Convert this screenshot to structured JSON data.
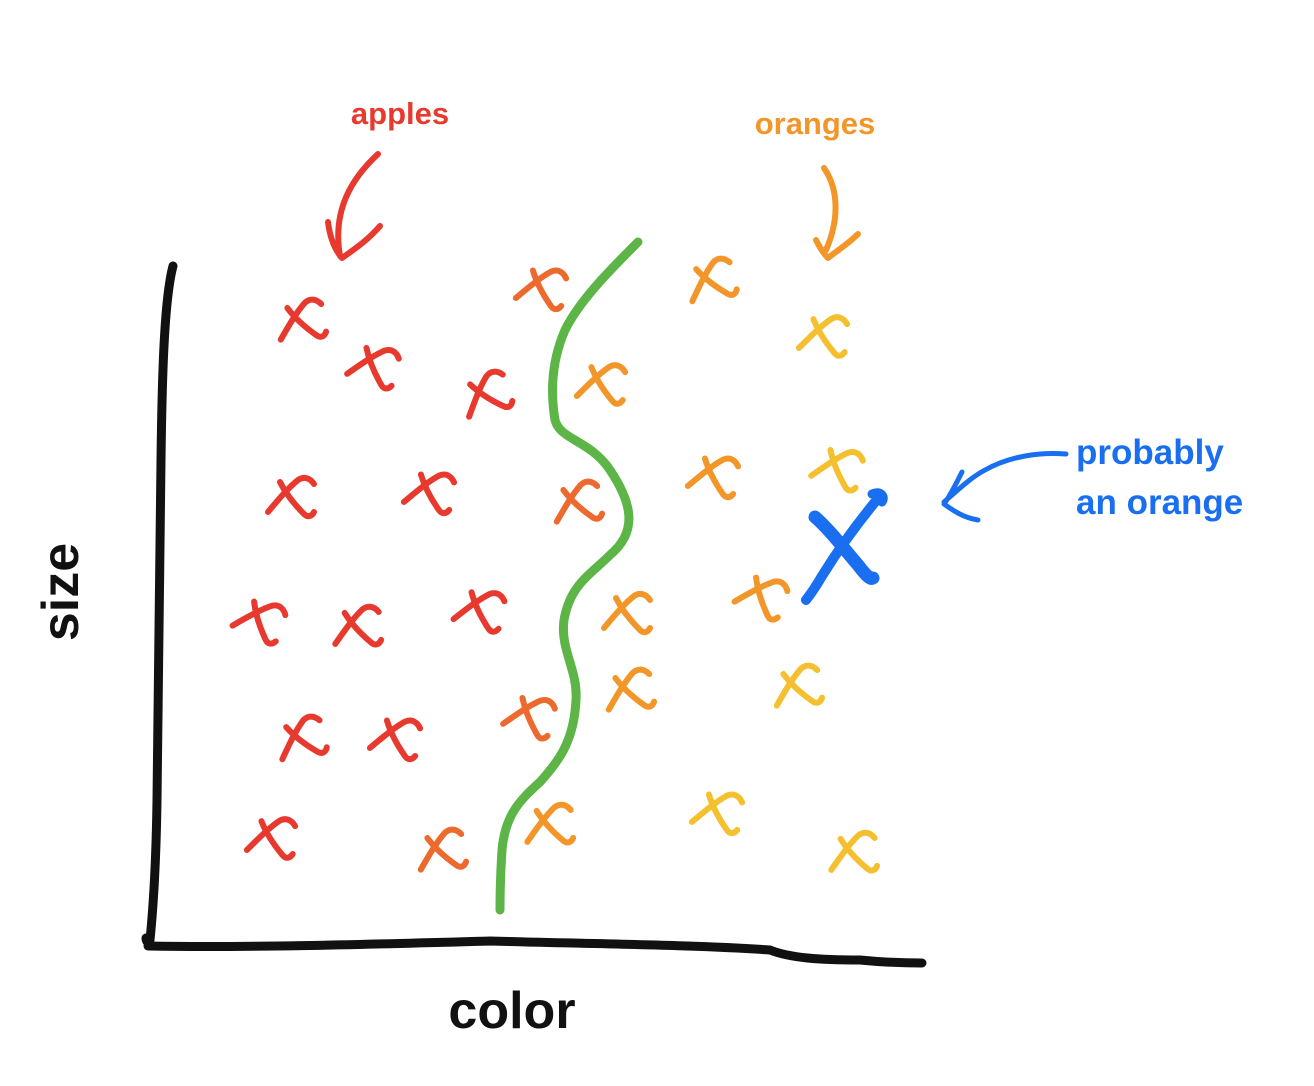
{
  "axes": {
    "x_label": "color",
    "y_label": "size"
  },
  "classes": {
    "apples": {
      "label": "apples",
      "color": "#e8392f"
    },
    "oranges": {
      "label": "oranges",
      "color": "#f2962a"
    },
    "boundary": {
      "color": "#5db548"
    },
    "new_point": {
      "label_line1": "probably",
      "label_line2": "an orange",
      "color": "#1a6ff0"
    }
  },
  "palette": {
    "red": "#e8392f",
    "red_orange": "#ec6a2e",
    "orange": "#f2962a",
    "yellow": "#f5c030",
    "black": "#111111"
  }
}
